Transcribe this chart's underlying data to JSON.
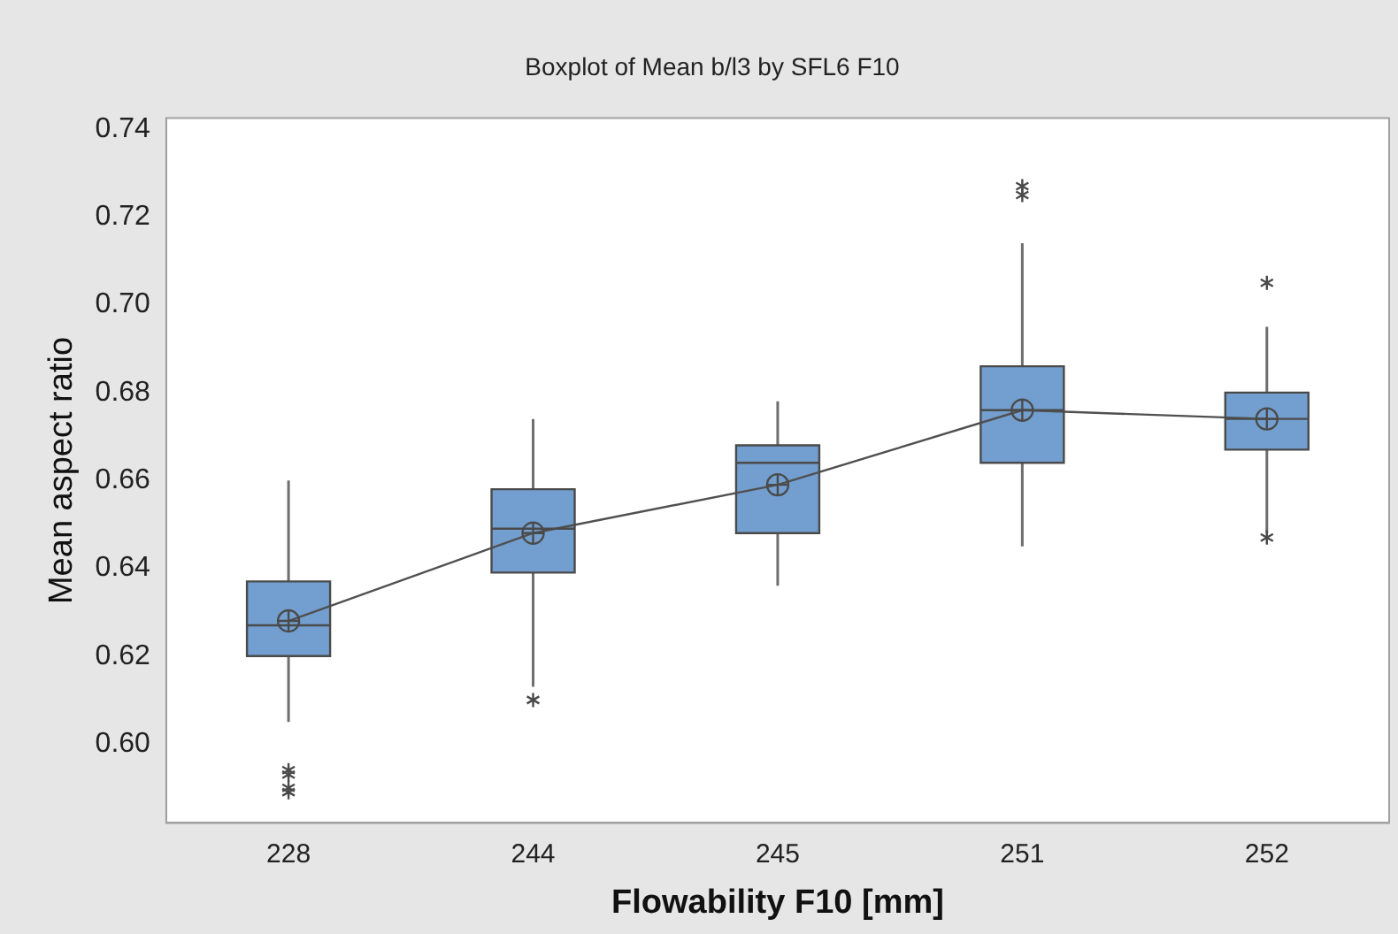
{
  "chart_data": {
    "type": "box",
    "title": "Boxplot of Mean b/l3 by SFL6 F10",
    "xlabel": "Flowability F10 [mm]",
    "ylabel": "Mean aspect ratio",
    "categories": [
      "228",
      "244",
      "245",
      "251",
      "252"
    ],
    "color": "#729fcf",
    "boxes": [
      {
        "low": 0.605,
        "q1": 0.62,
        "median": 0.627,
        "q3": 0.637,
        "high": 0.66,
        "mean": 0.628,
        "outliers": [
          0.594,
          0.593,
          0.59,
          0.589
        ]
      },
      {
        "low": 0.613,
        "q1": 0.639,
        "median": 0.649,
        "q3": 0.658,
        "high": 0.674,
        "mean": 0.648,
        "outliers": [
          0.61
        ]
      },
      {
        "low": 0.636,
        "q1": 0.648,
        "median": 0.664,
        "q3": 0.668,
        "high": 0.678,
        "mean": 0.659
      },
      {
        "low": 0.645,
        "q1": 0.664,
        "median": 0.676,
        "q3": 0.686,
        "high": 0.714,
        "mean": 0.676,
        "outliers": [
          0.727,
          0.725
        ]
      },
      {
        "low": 0.648,
        "q1": 0.667,
        "median": 0.674,
        "q3": 0.68,
        "high": 0.695,
        "mean": 0.674,
        "outliers": [
          0.705,
          0.647
        ]
      }
    ],
    "series": [
      {
        "type": "line",
        "color": "#505050",
        "values": [
          0.628,
          0.648,
          0.659,
          0.676,
          0.674
        ]
      }
    ],
    "marker": "none",
    "ylim": [
      0.582,
      0.7425
    ],
    "yticks": [
      {
        "value": 0.6,
        "label": "0.60"
      },
      0.62,
      0.64,
      0.66,
      0.68,
      {
        "value": 0.7,
        "label": "0.70"
      },
      0.72,
      0.74
    ],
    "grid": false,
    "legend": false
  }
}
